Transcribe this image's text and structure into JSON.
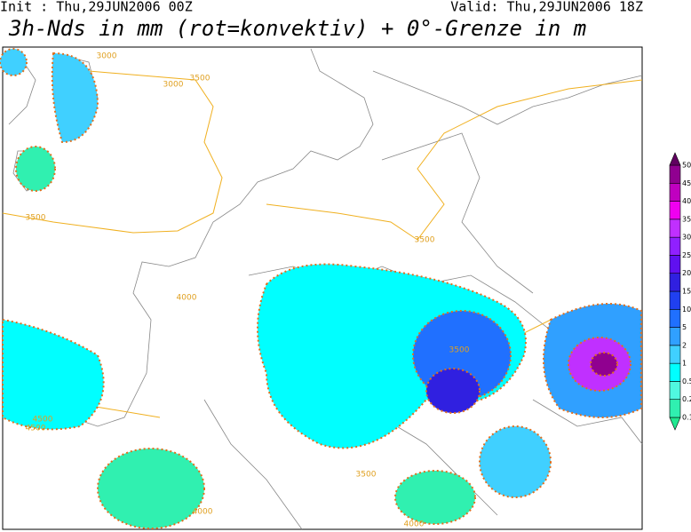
{
  "header": {
    "init": "Init : Thu,29JUN2006 00Z",
    "valid": "Valid: Thu,29JUN2006 18Z",
    "title": "3h-Nds in mm (rot=konvektiv) + 0°-Grenze in m"
  },
  "colorbar": {
    "levels": [
      0.1,
      0.2,
      0.5,
      1,
      2,
      5,
      10,
      15,
      20,
      25,
      30,
      35,
      40,
      45,
      50
    ],
    "colors": [
      "#20e890",
      "#30f0b0",
      "#50f8e0",
      "#00ffff",
      "#40d0ff",
      "#30a0ff",
      "#2070ff",
      "#2040f0",
      "#3020e0",
      "#6010f0",
      "#9020ff",
      "#c030ff",
      "#f000f0",
      "#c000c0",
      "#900090",
      "#600060"
    ]
  },
  "contours": {
    "labels": [
      "3000",
      "3500",
      "3000",
      "3500",
      "4000",
      "3500",
      "4500",
      "4500",
      "3500",
      "3500",
      "4000",
      "4000"
    ]
  }
}
